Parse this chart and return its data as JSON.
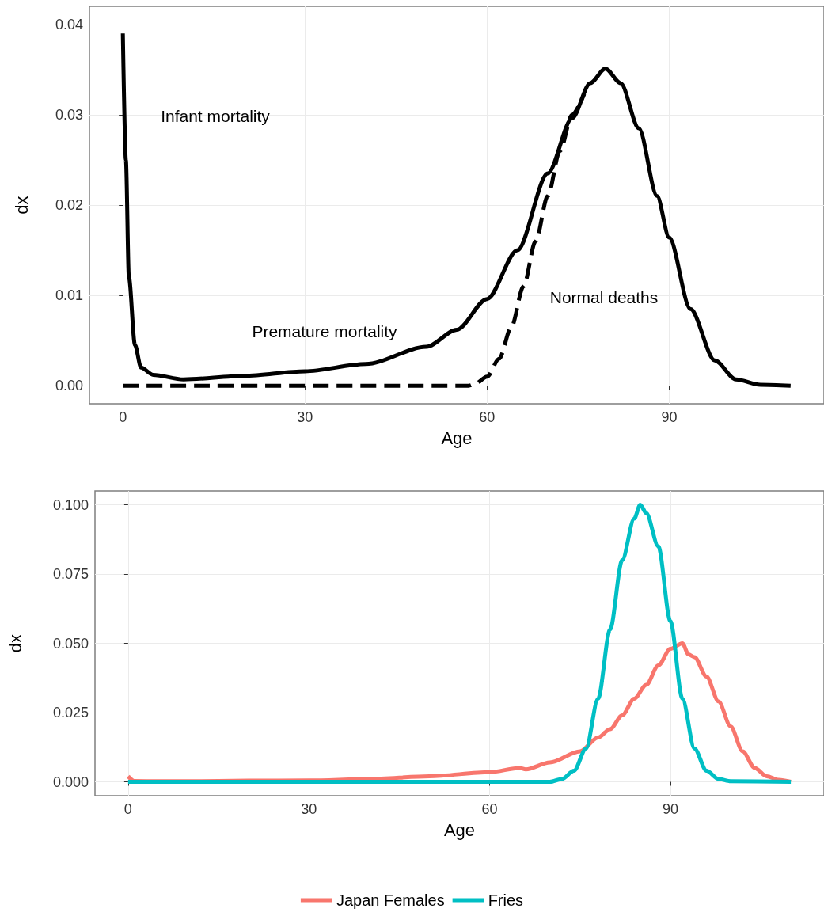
{
  "chart_data": [
    {
      "type": "line",
      "xlabel": "Age",
      "ylabel": "dx",
      "xlim": [
        -5.5,
        115.5
      ],
      "ylim": [
        -0.002,
        0.042
      ],
      "xticks": [
        0,
        30,
        60,
        90
      ],
      "yticks": [
        {
          "value": 0,
          "label": "0.00"
        },
        0.01,
        0.02,
        0.03,
        0.04
      ],
      "grid": true,
      "legend": false,
      "marker": "none",
      "annotations": [
        "Infant mortality",
        "Premature mortality",
        "Normal deaths"
      ],
      "series": [
        {
          "color": "#000000",
          "line_style": "solid",
          "x": [
            0,
            0.5,
            1,
            2,
            3,
            5,
            10,
            20,
            30,
            40,
            50,
            55,
            60,
            65,
            70,
            74,
            77,
            79.5,
            82,
            85,
            88,
            90,
            93.5,
            97.5,
            101,
            105,
            110
          ],
          "values": [
            0.039,
            0.025,
            0.012,
            0.0045,
            0.002,
            0.0012,
            0.0007,
            0.0011,
            0.0016,
            0.0024,
            0.0043,
            0.0062,
            0.0096,
            0.015,
            0.0235,
            0.0296,
            0.0335,
            0.0351,
            0.0335,
            0.0285,
            0.021,
            0.0164,
            0.0085,
            0.0028,
            0.0007,
            0.0001,
            0
          ]
        },
        {
          "color": "#000000",
          "line_style": "dashed",
          "x": [
            0,
            57,
            58,
            60,
            62,
            64,
            66,
            68,
            70,
            72,
            74,
            76
          ],
          "values": [
            0,
            0,
            0.0002,
            0.001,
            0.003,
            0.0065,
            0.011,
            0.016,
            0.021,
            0.026,
            0.03,
            0.0323
          ]
        }
      ]
    },
    {
      "type": "line",
      "xlabel": "Age",
      "ylabel": "dx",
      "xlim": [
        -5.5,
        115.5
      ],
      "ylim": [
        -0.005,
        0.105
      ],
      "xticks": [
        0,
        30,
        60,
        90
      ],
      "yticks": [
        {
          "value": 0,
          "label": "0.000"
        },
        0.025,
        {
          "value": 0.05,
          "label": "0.050"
        },
        0.075,
        {
          "value": 0.1,
          "label": "0.100"
        }
      ],
      "grid": true,
      "legend": "bottom",
      "marker": "none",
      "series": [
        {
          "name": "Japan Females",
          "color": "#f8766d",
          "x": [
            0,
            1,
            5,
            10,
            20,
            30,
            40,
            50,
            60,
            65,
            66,
            70,
            75,
            78,
            80,
            82,
            84,
            86,
            88,
            90,
            92,
            93,
            94,
            96,
            98,
            100,
            102,
            104,
            106,
            108,
            110
          ],
          "values": [
            0.002,
            0.0003,
            0.0002,
            0.0002,
            0.0004,
            0.0005,
            0.001,
            0.002,
            0.0035,
            0.005,
            0.0045,
            0.007,
            0.011,
            0.016,
            0.019,
            0.024,
            0.03,
            0.035,
            0.042,
            0.048,
            0.05,
            0.046,
            0.045,
            0.038,
            0.029,
            0.02,
            0.011,
            0.005,
            0.002,
            0.0007,
            0
          ]
        },
        {
          "name": "Fries",
          "color": "#00bfc4",
          "x": [
            0,
            70,
            72,
            74,
            76,
            78,
            80,
            82,
            84,
            85,
            86,
            88,
            90,
            92,
            94,
            96,
            98,
            100,
            110
          ],
          "values": [
            0,
            0,
            0.001,
            0.004,
            0.012,
            0.03,
            0.055,
            0.08,
            0.095,
            0.1,
            0.097,
            0.085,
            0.058,
            0.03,
            0.012,
            0.004,
            0.001,
            0.0002,
            0
          ]
        }
      ]
    }
  ]
}
